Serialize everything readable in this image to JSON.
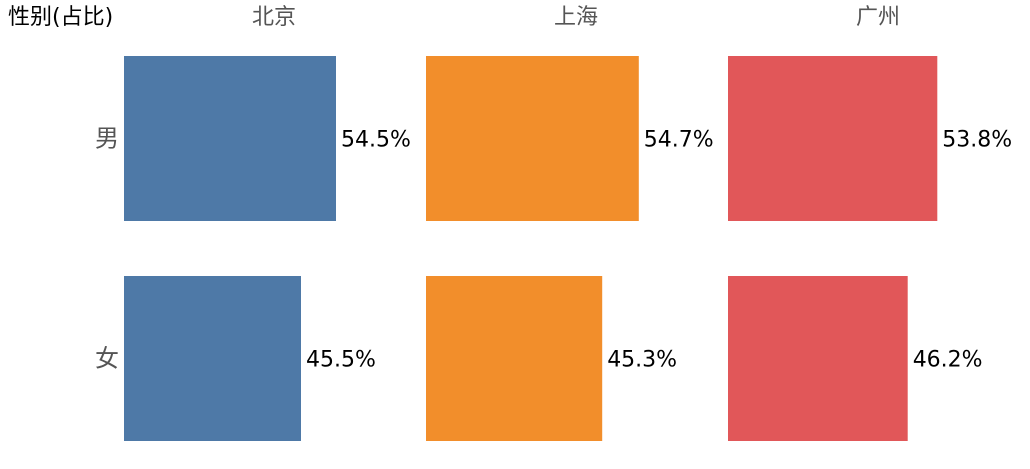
{
  "chart_data": {
    "type": "bar",
    "orientation": "horizontal",
    "layout": "small-multiples",
    "row_header": "性别(占比)",
    "categories": [
      "男",
      "女"
    ],
    "series": [
      {
        "name": "北京",
        "color": "#4e79a7",
        "values": [
          54.5,
          45.5
        ],
        "labels": [
          "54.5%",
          "45.5%"
        ]
      },
      {
        "name": "上海",
        "color": "#f28e2b",
        "values": [
          54.7,
          45.3
        ],
        "labels": [
          "54.7%",
          "45.3%"
        ]
      },
      {
        "name": "广州",
        "color": "#e15759",
        "values": [
          53.8,
          46.2
        ],
        "labels": [
          "53.8%",
          "46.2%"
        ]
      }
    ],
    "xlim": [
      0,
      100
    ],
    "grid": false,
    "legend": "none"
  }
}
